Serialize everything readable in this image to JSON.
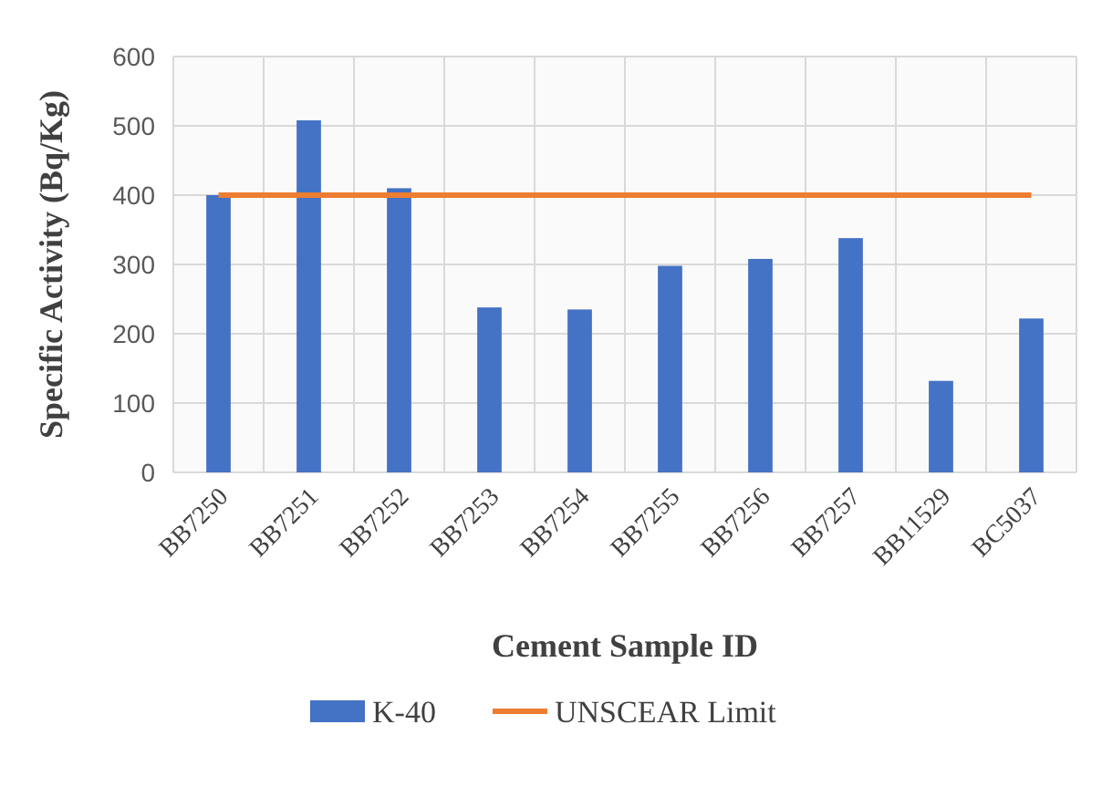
{
  "chart_data": {
    "type": "bar",
    "xlabel": "Cement Sample ID",
    "ylabel": "Specific Activity (Bq/Kg)",
    "categories": [
      "BB7250",
      "BB7251",
      "BB7252",
      "BB7253",
      "BB7254",
      "BB7255",
      "BB7256",
      "BB7257",
      "BB11529",
      "BC5037"
    ],
    "series": [
      {
        "name": "K-40",
        "color": "#4472c4",
        "values": [
          400,
          508,
          410,
          238,
          235,
          298,
          308,
          338,
          132,
          222
        ]
      },
      {
        "name": "UNSCEAR Limit",
        "type": "line",
        "color": "#ed7d31",
        "values": [
          400,
          400,
          400,
          400,
          400,
          400,
          400,
          400,
          400,
          400
        ]
      }
    ],
    "ylim": [
      0,
      600
    ],
    "yticks": [
      0,
      100,
      200,
      300,
      400,
      500,
      600
    ],
    "grid": true,
    "legend": "bottom",
    "marker": "none",
    "line_style": "solid"
  }
}
